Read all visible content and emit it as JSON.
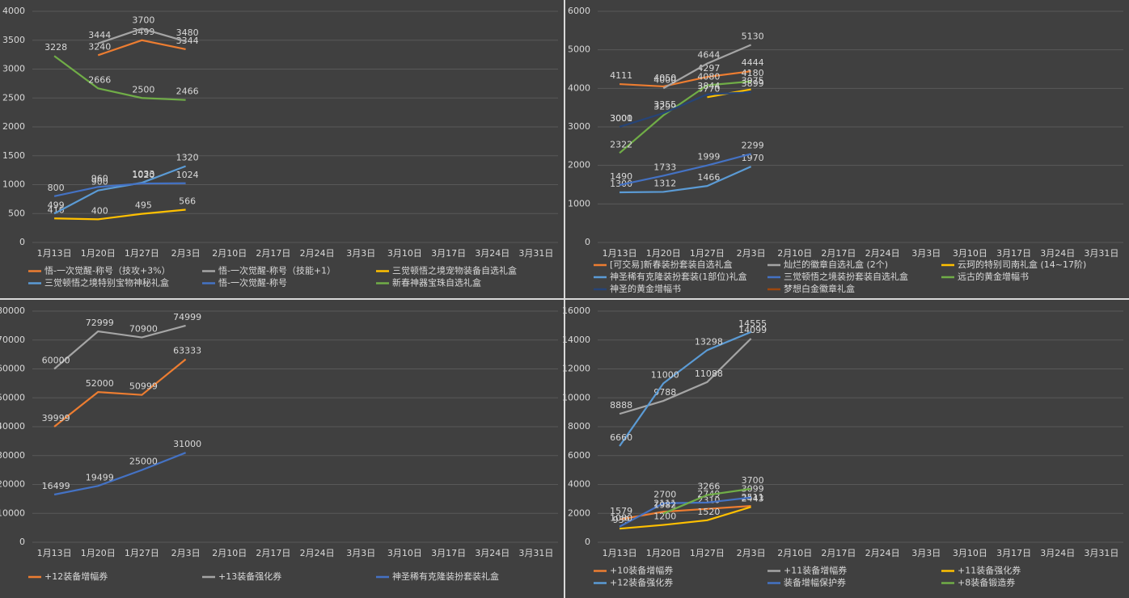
{
  "chart_data": [
    {
      "type": "line",
      "categories": [
        "1月13日",
        "1月20日",
        "1月27日",
        "2月3日",
        "2月10日",
        "2月17日",
        "2月24日",
        "3月3日",
        "3月10日",
        "3月17日",
        "3月24日",
        "3月31日"
      ],
      "ylim": [
        0,
        4000
      ],
      "yticks": [
        0,
        500,
        1000,
        1500,
        2000,
        2500,
        3000,
        3500,
        4000
      ],
      "grid": true,
      "series": [
        {
          "name": "悟-一次觉醒-称号（技攻+3%）",
          "color": "#ed7d31",
          "values": [
            null,
            3240,
            3499,
            3344,
            null,
            null,
            null,
            null,
            null,
            null,
            null,
            null
          ]
        },
        {
          "name": "悟-一次觉醒-称号（技能+1）",
          "color": "#a5a5a5",
          "values": [
            null,
            3444,
            3700,
            3480,
            null,
            null,
            null,
            null,
            null,
            null,
            null,
            null
          ]
        },
        {
          "name": "三觉顿悟之境宠物装备自选礼盒",
          "color": "#ffc000",
          "values": [
            416,
            400,
            495,
            566,
            null,
            null,
            null,
            null,
            null,
            null,
            null,
            null
          ]
        },
        {
          "name": "三觉顿悟之境特别宝物神秘礼盒",
          "color": "#5b9bd5",
          "values": [
            499,
            900,
            1033,
            1320,
            null,
            null,
            null,
            null,
            null,
            null,
            null,
            null
          ]
        },
        {
          "name": "悟-一次觉醒-称号",
          "color": "#4472c4",
          "values": [
            800,
            960,
            1020,
            1024,
            null,
            null,
            null,
            null,
            null,
            null,
            null,
            null
          ]
        },
        {
          "name": "新春神器宝珠自选礼盒",
          "color": "#70ad47",
          "values": [
            3228,
            2666,
            2500,
            2466,
            null,
            null,
            null,
            null,
            null,
            null,
            null,
            null
          ]
        }
      ]
    },
    {
      "type": "line",
      "categories": [
        "1月13日",
        "1月20日",
        "1月27日",
        "2月3日",
        "2月10日",
        "2月17日",
        "2月24日",
        "3月3日",
        "3月10日",
        "3月17日",
        "3月24日",
        "3月31日"
      ],
      "ylim": [
        0,
        6000
      ],
      "yticks": [
        0,
        1000,
        2000,
        3000,
        4000,
        5000,
        6000
      ],
      "grid": true,
      "series": [
        {
          "name": "[可交易]新春装扮套装自选礼盒",
          "color": "#ed7d31",
          "values": [
            4111,
            4050,
            4297,
            4444,
            null,
            null,
            null,
            null,
            null,
            null,
            null,
            null
          ]
        },
        {
          "name": "灿烂的徽章自选礼盒 (2个)",
          "color": "#a5a5a5",
          "values": [
            null,
            4000,
            4644,
            5130,
            null,
            null,
            null,
            null,
            null,
            null,
            null,
            null
          ]
        },
        {
          "name": "云珂的特别司南礼盒 (14~17阶)",
          "color": "#ffc000",
          "values": [
            null,
            null,
            3770,
            3975,
            null,
            null,
            null,
            null,
            null,
            null,
            null,
            null
          ]
        },
        {
          "name": "神圣稀有克隆装扮套装(1部位)礼盒",
          "color": "#5b9bd5",
          "values": [
            1300,
            1312,
            1466,
            1970,
            null,
            null,
            null,
            null,
            null,
            null,
            null,
            null
          ]
        },
        {
          "name": "三觉顿悟之境装扮套装自选礼盒",
          "color": "#4472c4",
          "values": [
            1490,
            1733,
            1999,
            2299,
            null,
            null,
            null,
            null,
            null,
            null,
            null,
            null
          ]
        },
        {
          "name": "远古的黄金增幅书",
          "color": "#70ad47",
          "values": [
            2322,
            3299,
            4080,
            4180,
            null,
            null,
            null,
            null,
            null,
            null,
            null,
            null
          ]
        },
        {
          "name": "神圣的黄金增幅书",
          "color": "#264478",
          "values": [
            3001,
            3355,
            3844,
            3899,
            null,
            null,
            null,
            null,
            null,
            null,
            null,
            null
          ]
        },
        {
          "name": "梦想白金徽章礼盒",
          "color": "#9e480e",
          "values": [
            3000,
            null,
            null,
            null,
            null,
            null,
            null,
            null,
            null,
            null,
            null,
            null
          ]
        }
      ]
    },
    {
      "type": "line",
      "categories": [
        "1月13日",
        "1月20日",
        "1月27日",
        "2月3日",
        "2月10日",
        "2月17日",
        "2月24日",
        "3月3日",
        "3月10日",
        "3月17日",
        "3月24日",
        "3月31日"
      ],
      "ylim": [
        0,
        80000
      ],
      "yticks": [
        0,
        10000,
        20000,
        30000,
        40000,
        50000,
        60000,
        70000,
        80000
      ],
      "grid": true,
      "series": [
        {
          "name": "+12装备增幅券",
          "color": "#ed7d31",
          "values": [
            39999,
            52000,
            50999,
            63333,
            null,
            null,
            null,
            null,
            null,
            null,
            null,
            null
          ]
        },
        {
          "name": "+13装备强化券",
          "color": "#a5a5a5",
          "values": [
            60000,
            72999,
            70900,
            74999,
            null,
            null,
            null,
            null,
            null,
            null,
            null,
            null
          ]
        },
        {
          "name": "神圣稀有克隆装扮套装礼盒",
          "color": "#4472c4",
          "values": [
            16499,
            19499,
            25000,
            31000,
            null,
            null,
            null,
            null,
            null,
            null,
            null,
            null
          ]
        }
      ]
    },
    {
      "type": "line",
      "categories": [
        "1月13日",
        "1月20日",
        "1月27日",
        "2月3日",
        "2月10日",
        "2月17日",
        "2月24日",
        "3月3日",
        "3月10日",
        "3月17日",
        "3月24日",
        "3月31日"
      ],
      "ylim": [
        0,
        16000
      ],
      "yticks": [
        0,
        2000,
        4000,
        6000,
        8000,
        10000,
        12000,
        14000,
        16000
      ],
      "grid": true,
      "series": [
        {
          "name": "+10装备增幅券",
          "color": "#ed7d31",
          "values": [
            1579,
            2111,
            2310,
            2511,
            null,
            null,
            null,
            null,
            null,
            null,
            null,
            null
          ]
        },
        {
          "name": "+11装备增幅券",
          "color": "#a5a5a5",
          "values": [
            8888,
            9788,
            11088,
            14099,
            null,
            null,
            null,
            null,
            null,
            null,
            null,
            null
          ]
        },
        {
          "name": "+11装备强化券",
          "color": "#ffc000",
          "values": [
            939,
            1200,
            1520,
            2443,
            null,
            null,
            null,
            null,
            null,
            null,
            null,
            null
          ]
        },
        {
          "name": "+12装备强化券",
          "color": "#5b9bd5",
          "values": [
            6660,
            11000,
            13298,
            14555,
            null,
            null,
            null,
            null,
            null,
            null,
            null,
            null
          ]
        },
        {
          "name": "装备增幅保护券",
          "color": "#4472c4",
          "values": [
            1080,
            2700,
            2749,
            3099,
            null,
            null,
            null,
            null,
            null,
            null,
            null,
            null
          ]
        },
        {
          "name": "+8装备锻造券",
          "color": "#70ad47",
          "values": [
            null,
            1982,
            3266,
            3700,
            null,
            null,
            null,
            null,
            null,
            null,
            null,
            null
          ]
        }
      ]
    }
  ]
}
